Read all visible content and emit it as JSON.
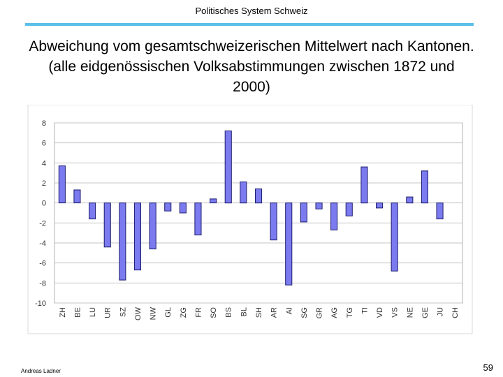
{
  "header": {
    "title": "Politisches System Schweiz",
    "rule_color": "#5bc0e8"
  },
  "slide": {
    "title": "Abweichung vom gesamtschweizerischen Mittelwert nach Kantonen. (alle eidgenössischen Volksabstimmungen zwischen 1872 und 2000)"
  },
  "footer": {
    "author": "Andreas Ladner",
    "page": "59"
  },
  "chart_data": {
    "type": "bar",
    "title": "",
    "xlabel": "",
    "ylabel": "",
    "ylim": [
      -10,
      8
    ],
    "yticks": [
      8,
      6,
      4,
      2,
      0,
      -2,
      -4,
      -6,
      -8,
      -10
    ],
    "grid": true,
    "legend": "none",
    "bar_color": "#7b7bef",
    "categories": [
      "ZH",
      "BE",
      "LU",
      "UR",
      "SZ",
      "OW",
      "NW",
      "GL",
      "ZG",
      "FR",
      "SO",
      "BS",
      "BL",
      "SH",
      "AR",
      "AI",
      "SG",
      "GR",
      "AG",
      "TG",
      "TI",
      "VD",
      "VS",
      "NE",
      "GE",
      "JU",
      "CH"
    ],
    "values": [
      3.7,
      1.3,
      -1.6,
      -4.4,
      -7.7,
      -6.7,
      -4.6,
      -0.8,
      -1.0,
      -3.2,
      0.4,
      7.2,
      2.1,
      1.4,
      -3.7,
      -8.2,
      -1.9,
      -0.6,
      -2.7,
      -1.3,
      3.6,
      -0.5,
      -6.8,
      0.6,
      3.2,
      -1.6,
      0
    ]
  }
}
